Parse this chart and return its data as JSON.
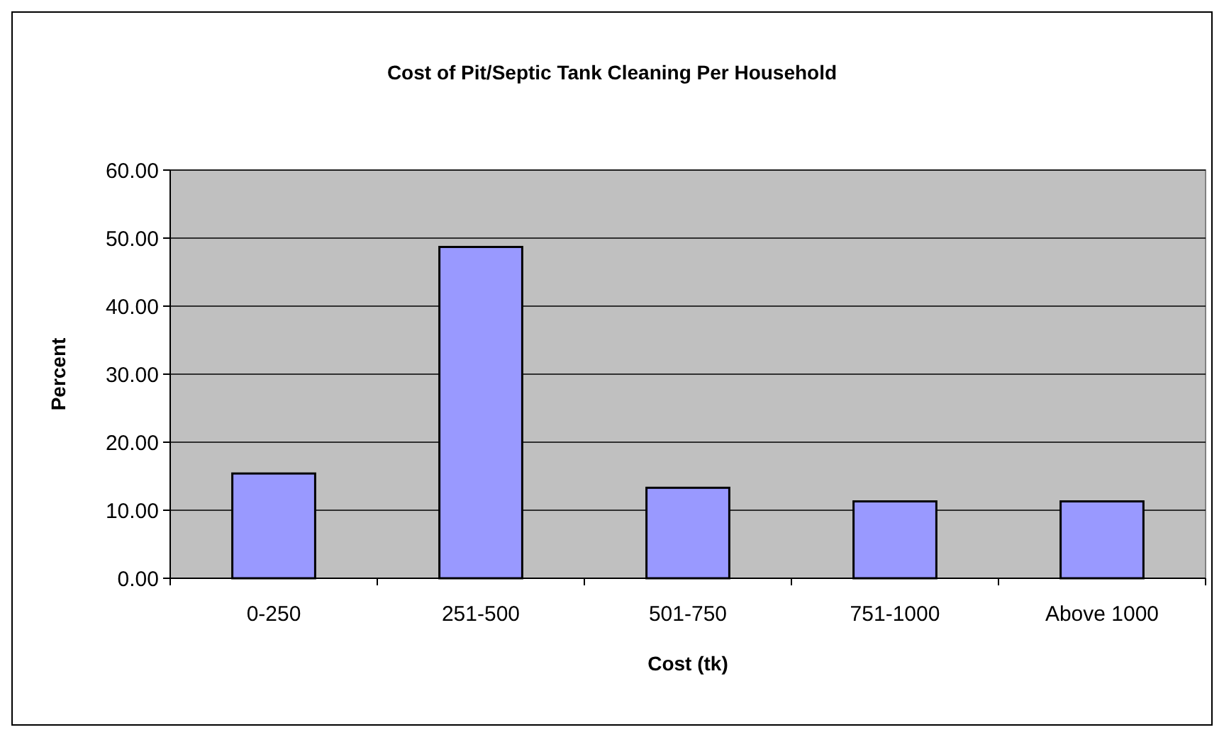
{
  "chart_data": {
    "type": "bar",
    "title": "Cost of Pit/Septic Tank Cleaning Per Household",
    "xlabel": "Cost (tk)",
    "ylabel": "Percent",
    "categories": [
      "0-250",
      "251-500",
      "501-750",
      "751-1000",
      "Above 1000"
    ],
    "values": [
      15.4,
      48.7,
      13.3,
      11.3,
      11.3
    ],
    "color": "#9999ff",
    "ylim": [
      0,
      60
    ],
    "yticks": [
      {
        "value": 0,
        "label": "0.00"
      },
      {
        "value": 10,
        "label": "10.00"
      },
      {
        "value": 20,
        "label": "20.00"
      },
      {
        "value": 30,
        "label": "30.00"
      },
      {
        "value": 40,
        "label": "40.00"
      },
      {
        "value": 50,
        "label": "50.00"
      },
      {
        "value": 60,
        "label": "60.00"
      }
    ],
    "grid": "y"
  }
}
